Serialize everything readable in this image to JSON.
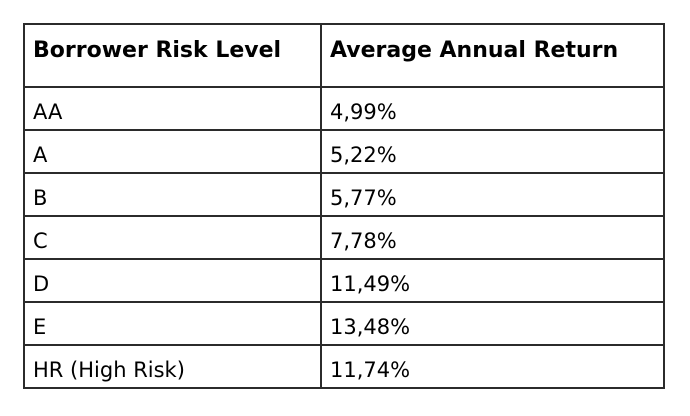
{
  "table": {
    "headers": [
      "Borrower Risk Level",
      "Average Annual Return"
    ],
    "rows": [
      [
        "AA",
        "4,99%"
      ],
      [
        "A",
        "5,22%"
      ],
      [
        "B",
        "5,77%"
      ],
      [
        "C",
        "7,78%"
      ],
      [
        "D",
        "11,49%"
      ],
      [
        "E",
        "13,48%"
      ],
      [
        "HR (High Risk)",
        "11,74%"
      ]
    ]
  }
}
